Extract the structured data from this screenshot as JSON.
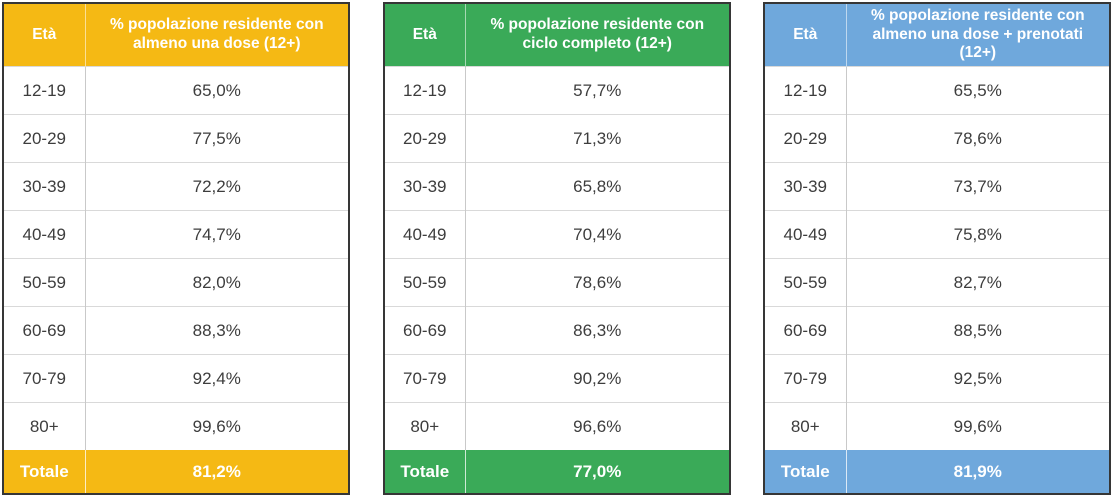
{
  "page": {
    "background": "#ffffff",
    "text_color": "#3d3d3d"
  },
  "tables": [
    {
      "id": "almeno-una-dose",
      "accent": "#f5b914",
      "header": {
        "age_label": "Età",
        "title": "% popolazione residente con almeno una dose (12+)"
      },
      "rows": [
        {
          "age": "12-19",
          "value": "65,0%"
        },
        {
          "age": "20-29",
          "value": "77,5%"
        },
        {
          "age": "30-39",
          "value": "72,2%"
        },
        {
          "age": "40-49",
          "value": "74,7%"
        },
        {
          "age": "50-59",
          "value": "82,0%"
        },
        {
          "age": "60-69",
          "value": "88,3%"
        },
        {
          "age": "70-79",
          "value": "92,4%"
        },
        {
          "age": "80+",
          "value": "99,6%"
        }
      ],
      "total": {
        "label": "Totale",
        "value": "81,2%"
      }
    },
    {
      "id": "ciclo-completo",
      "accent": "#3aaa58",
      "header": {
        "age_label": "Età",
        "title": "% popolazione residente con ciclo completo (12+)"
      },
      "rows": [
        {
          "age": "12-19",
          "value": "57,7%"
        },
        {
          "age": "20-29",
          "value": "71,3%"
        },
        {
          "age": "30-39",
          "value": "65,8%"
        },
        {
          "age": "40-49",
          "value": "70,4%"
        },
        {
          "age": "50-59",
          "value": "78,6%"
        },
        {
          "age": "60-69",
          "value": "86,3%"
        },
        {
          "age": "70-79",
          "value": "90,2%"
        },
        {
          "age": "80+",
          "value": "96,6%"
        }
      ],
      "total": {
        "label": "Totale",
        "value": "77,0%"
      }
    },
    {
      "id": "una-dose-piu-prenotati",
      "accent": "#6fa8dc",
      "header": {
        "age_label": "Età",
        "title": "% popolazione residente con almeno una dose + prenotati (12+)"
      },
      "rows": [
        {
          "age": "12-19",
          "value": "65,5%"
        },
        {
          "age": "20-29",
          "value": "78,6%"
        },
        {
          "age": "30-39",
          "value": "73,7%"
        },
        {
          "age": "40-49",
          "value": "75,8%"
        },
        {
          "age": "50-59",
          "value": "82,7%"
        },
        {
          "age": "60-69",
          "value": "88,5%"
        },
        {
          "age": "70-79",
          "value": "92,5%"
        },
        {
          "age": "80+",
          "value": "99,6%"
        }
      ],
      "total": {
        "label": "Totale",
        "value": "81,9%"
      }
    }
  ],
  "chart_data": [
    {
      "type": "table",
      "title": "% popolazione residente con almeno una dose (12+)",
      "columns": [
        "Età",
        "% popolazione residente con almeno una dose (12+)"
      ],
      "categories": [
        "12-19",
        "20-29",
        "30-39",
        "40-49",
        "50-59",
        "60-69",
        "70-79",
        "80+",
        "Totale"
      ],
      "values": [
        65.0,
        77.5,
        72.2,
        74.7,
        82.0,
        88.3,
        92.4,
        99.6,
        81.2
      ],
      "value_format": "percent with comma decimal separator",
      "accent_color": "#f5b914"
    },
    {
      "type": "table",
      "title": "% popolazione residente con ciclo completo (12+)",
      "columns": [
        "Età",
        "% popolazione residente con ciclo completo (12+)"
      ],
      "categories": [
        "12-19",
        "20-29",
        "30-39",
        "40-49",
        "50-59",
        "60-69",
        "70-79",
        "80+",
        "Totale"
      ],
      "values": [
        57.7,
        71.3,
        65.8,
        70.4,
        78.6,
        86.3,
        90.2,
        96.6,
        77.0
      ],
      "value_format": "percent with comma decimal separator",
      "accent_color": "#3aaa58"
    },
    {
      "type": "table",
      "title": "% popolazione residente con almeno una dose + prenotati (12+)",
      "columns": [
        "Età",
        "% popolazione residente con almeno una dose + prenotati (12+)"
      ],
      "categories": [
        "12-19",
        "20-29",
        "30-39",
        "40-49",
        "50-59",
        "60-69",
        "70-79",
        "80+",
        "Totale"
      ],
      "values": [
        65.5,
        78.6,
        73.7,
        75.8,
        82.7,
        88.5,
        92.5,
        99.6,
        81.9
      ],
      "value_format": "percent with comma decimal separator",
      "accent_color": "#6fa8dc"
    }
  ]
}
